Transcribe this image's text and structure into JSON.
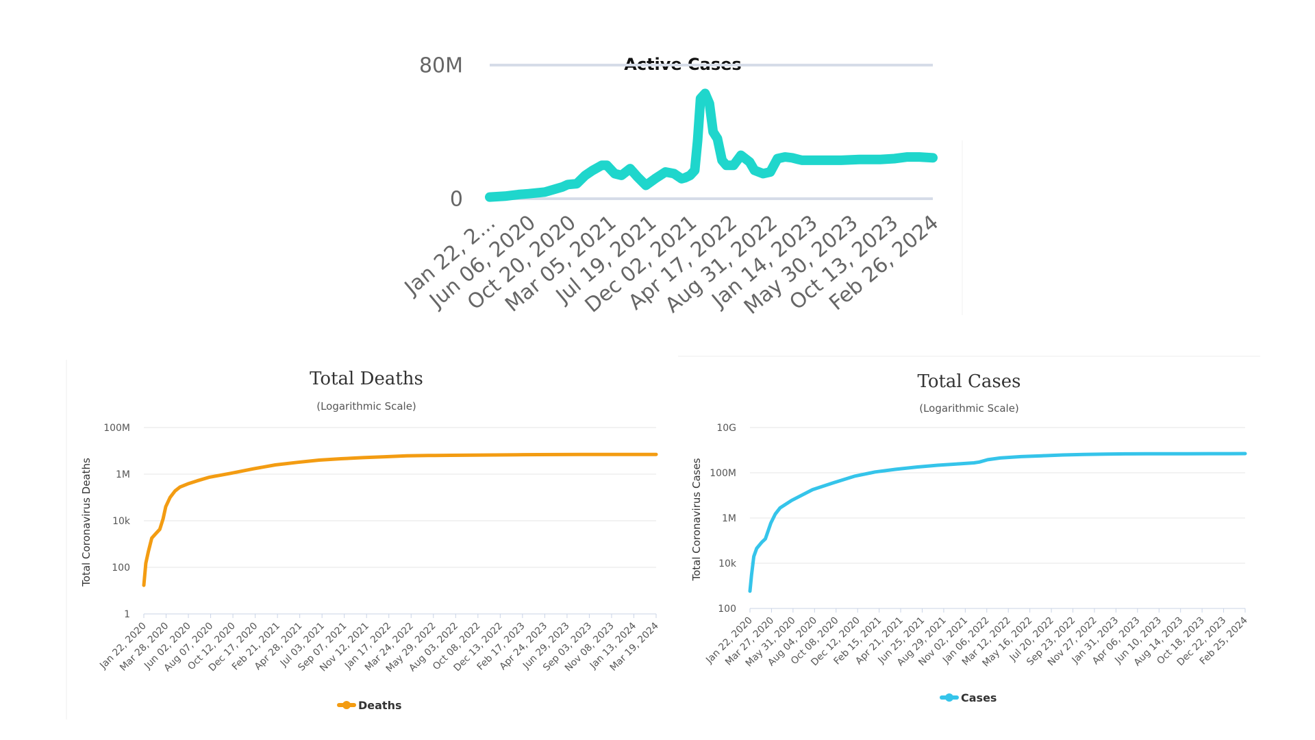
{
  "chart_data": [
    {
      "id": "active",
      "type": "line",
      "title": "Active Cases",
      "subtitle": "",
      "ylabel": "",
      "yscale": "linear",
      "ylim": [
        0,
        80000000
      ],
      "yticks": [
        "0",
        "80M"
      ],
      "ytick_values": [
        0,
        80000000
      ],
      "xticks": [
        "Jan 22, 2...",
        "Jun 06, 2020",
        "Oct 20, 2020",
        "Mar 05, 2021",
        "Jul 19, 2021",
        "Dec 02, 2021",
        "Apr 17, 2022",
        "Aug 31, 2022",
        "Jan 14, 2023",
        "May 30, 2023",
        "Oct 13, 2023",
        "Feb 26, 2024"
      ],
      "xlim": [
        "2020-01-22",
        "2024-04-13"
      ],
      "grid": true,
      "color": "#1fd6cc",
      "series": [
        {
          "x": [
            "2020-01-22",
            "2020-03-15",
            "2020-05-01",
            "2020-06-06",
            "2020-08-01",
            "2020-10-01",
            "2020-10-20",
            "2020-11-20",
            "2020-12-20",
            "2021-01-15",
            "2021-02-15",
            "2021-03-05",
            "2021-04-01",
            "2021-04-25",
            "2021-05-25",
            "2021-06-20",
            "2021-07-19",
            "2021-08-20",
            "2021-09-25",
            "2021-10-25",
            "2021-11-20",
            "2021-12-02",
            "2021-12-20",
            "2022-01-05",
            "2022-01-15",
            "2022-01-25",
            "2022-02-10",
            "2022-02-25",
            "2022-03-10",
            "2022-03-25",
            "2022-04-10",
            "2022-04-25",
            "2022-05-20",
            "2022-06-15",
            "2022-07-15",
            "2022-08-01",
            "2022-08-31",
            "2022-09-25",
            "2022-10-20",
            "2022-11-15",
            "2022-12-10",
            "2023-01-01",
            "2023-01-14",
            "2023-02-10",
            "2023-03-10",
            "2023-05-30",
            "2023-08-01",
            "2023-10-13",
            "2023-12-01",
            "2024-01-15",
            "2024-02-26",
            "2024-04-13"
          ],
          "y": [
            1000000,
            1500000,
            2500000,
            3000000,
            4000000,
            7000000,
            8500000,
            9000000,
            14000000,
            17000000,
            20000000,
            20000000,
            15000000,
            14000000,
            18000000,
            13000000,
            8000000,
            12000000,
            16000000,
            15000000,
            12000000,
            12500000,
            14000000,
            17000000,
            35000000,
            60000000,
            63000000,
            57000000,
            40000000,
            36000000,
            23000000,
            20000000,
            20000000,
            26000000,
            22000000,
            17000000,
            15000000,
            16000000,
            24000000,
            25000000,
            24500000,
            23500000,
            23000000,
            23000000,
            23000000,
            23000000,
            23500000,
            23500000,
            24000000,
            25000000,
            25000000,
            24500000
          ]
        }
      ]
    },
    {
      "id": "deaths",
      "type": "line",
      "title": "Total Deaths",
      "subtitle": "(Logarithmic Scale)",
      "ylabel": "Total Coronavirus Deaths",
      "yscale": "log",
      "ylim": [
        1,
        100000000
      ],
      "yticks": [
        "1",
        "100",
        "10k",
        "1M",
        "100M"
      ],
      "ytick_values": [
        1,
        100,
        10000,
        1000000,
        100000000
      ],
      "xticks": [
        "Jan 22, 2020",
        "Mar 28, 2020",
        "Jun 02, 2020",
        "Aug 07, 2020",
        "Oct 12, 2020",
        "Dec 17, 2020",
        "Feb 21, 2021",
        "Apr 28, 2021",
        "Jul 03, 2021",
        "Sep 07, 2021",
        "Nov 12, 2021",
        "Jan 17, 2022",
        "Mar 24, 2022",
        "May 29, 2022",
        "Aug 03, 2022",
        "Oct 08, 2022",
        "Dec 13, 2022",
        "Feb 17, 2023",
        "Apr 24, 2023",
        "Jun 29, 2023",
        "Sep 03, 2023",
        "Nov 08, 2023",
        "Jan 13, 2024",
        "Mar 19, 2024"
      ],
      "xlim": [
        "2020-01-22",
        "2024-04-13"
      ],
      "grid": true,
      "legend": "Deaths",
      "legend_position": "bottom",
      "color": "#f39c12",
      "series": [
        {
          "name": "Deaths",
          "x": [
            "2020-01-22",
            "2020-01-28",
            "2020-02-05",
            "2020-02-15",
            "2020-02-28",
            "2020-03-10",
            "2020-03-20",
            "2020-03-28",
            "2020-04-10",
            "2020-04-25",
            "2020-05-10",
            "2020-06-02",
            "2020-07-01",
            "2020-08-07",
            "2020-10-12",
            "2020-12-17",
            "2021-02-21",
            "2021-04-28",
            "2021-07-03",
            "2021-09-07",
            "2021-11-12",
            "2022-01-17",
            "2022-03-24",
            "2022-05-29",
            "2022-08-03",
            "2022-10-08",
            "2022-12-13",
            "2023-02-17",
            "2023-04-24",
            "2023-06-29",
            "2023-09-03",
            "2023-11-08",
            "2024-01-13",
            "2024-03-19",
            "2024-04-13"
          ],
          "y": [
            17,
            150,
            500,
            1800,
            2900,
            4300,
            12000,
            40000,
            100000,
            190000,
            280000,
            380000,
            520000,
            740000,
            1100000,
            1700000,
            2500000,
            3200000,
            4000000,
            4600000,
            5100000,
            5600000,
            6100000,
            6300000,
            6450000,
            6550000,
            6650000,
            6800000,
            6900000,
            6950000,
            6980000,
            7000000,
            7020000,
            7040000,
            7050000
          ]
        }
      ]
    },
    {
      "id": "cases",
      "type": "line",
      "title": "Total Cases",
      "subtitle": "(Logarithmic Scale)",
      "ylabel": "Total Coronavirus Cases",
      "yscale": "log",
      "ylim": [
        100,
        10000000000
      ],
      "yticks": [
        "100",
        "10k",
        "1M",
        "100M",
        "10G"
      ],
      "ytick_values": [
        100,
        10000,
        1000000,
        100000000,
        10000000000
      ],
      "xticks": [
        "Jan 22, 2020",
        "Mar 27, 2020",
        "May 31, 2020",
        "Aug 04, 2020",
        "Oct 08, 2020",
        "Dec 12, 2020",
        "Feb 15, 2021",
        "Apr 21, 2021",
        "Jun 25, 2021",
        "Aug 29, 2021",
        "Nov 02, 2021",
        "Jan 06, 2022",
        "Mar 12, 2022",
        "May 16, 2022",
        "Jul 20, 2022",
        "Sep 23, 2022",
        "Nov 27, 2022",
        "Jan 31, 2023",
        "Apr 06, 2023",
        "Jun 10, 2023",
        "Aug 14, 2023",
        "Oct 18, 2023",
        "Dec 22, 2023",
        "Feb 25, 2024"
      ],
      "xlim": [
        "2020-01-22",
        "2024-04-13"
      ],
      "grid": true,
      "legend": "Cases",
      "legend_position": "bottom",
      "color": "#35c4ea",
      "series": [
        {
          "name": "Cases",
          "x": [
            "2020-01-22",
            "2020-01-27",
            "2020-02-03",
            "2020-02-12",
            "2020-02-28",
            "2020-03-10",
            "2020-03-27",
            "2020-04-10",
            "2020-04-25",
            "2020-05-31",
            "2020-08-04",
            "2020-10-08",
            "2020-12-12",
            "2021-02-15",
            "2021-04-21",
            "2021-06-25",
            "2021-08-29",
            "2021-11-02",
            "2021-12-20",
            "2022-01-06",
            "2022-02-01",
            "2022-03-12",
            "2022-05-16",
            "2022-07-20",
            "2022-09-23",
            "2022-11-27",
            "2023-01-31",
            "2023-04-06",
            "2023-06-10",
            "2023-08-14",
            "2023-10-18",
            "2023-12-22",
            "2024-02-25",
            "2024-04-13"
          ],
          "y": [
            580,
            3000,
            20000,
            45000,
            85000,
            120000,
            600000,
            1500000,
            2800000,
            6000000,
            18000000,
            36000000,
            70000000,
            109000000,
            143000000,
            180000000,
            216000000,
            247000000,
            275000000,
            300000000,
            380000000,
            450000000,
            520000000,
            565000000,
            615000000,
            645000000,
            670000000,
            685000000,
            692000000,
            695000000,
            698000000,
            700000000,
            702000000,
            704000000
          ]
        }
      ]
    }
  ]
}
